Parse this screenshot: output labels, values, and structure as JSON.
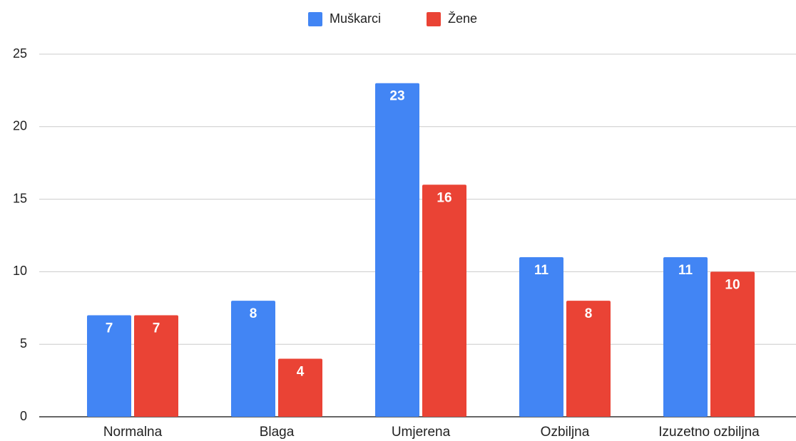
{
  "chart_data": {
    "type": "bar",
    "categories": [
      "Normalna",
      "Blaga",
      "Umjerena",
      "Ozbiljna",
      "Izuzetno ozbiljna"
    ],
    "series": [
      {
        "name": "Muškarci",
        "color": "#4285f4",
        "values": [
          7,
          8,
          23,
          11,
          11
        ]
      },
      {
        "name": "Žene",
        "color": "#ea4335",
        "values": [
          7,
          4,
          16,
          8,
          10
        ]
      }
    ],
    "ylim": [
      0,
      25
    ],
    "yticks": [
      0,
      5,
      10,
      15,
      20,
      25
    ],
    "grid": true,
    "legend": "top"
  }
}
